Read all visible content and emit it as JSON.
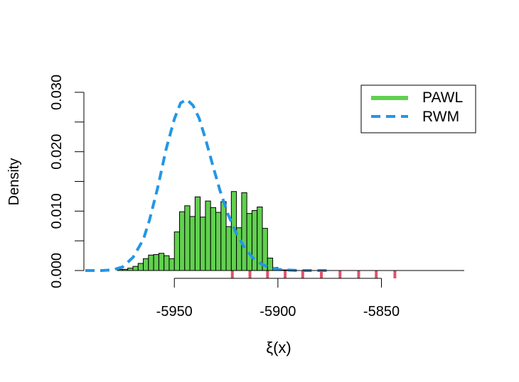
{
  "chart_data": {
    "type": "histogram",
    "title": "",
    "xlabel": "ξ(x)",
    "ylabel": "Density",
    "xlim": [
      -5993,
      -5810
    ],
    "ylim": [
      0,
      0.03
    ],
    "x_ticks": [
      -5950,
      -5900,
      -5850
    ],
    "x_tick_labels": [
      "-5950",
      "-5900",
      "-5850"
    ],
    "y_ticks": [
      0.0,
      0.005,
      0.01,
      0.015,
      0.02,
      0.025,
      0.03
    ],
    "y_tick_labels": [
      "0.000",
      "",
      "0.010",
      "",
      "0.020",
      "",
      "0.030"
    ],
    "grid": false,
    "legend": {
      "position": "top-right",
      "entries": [
        {
          "label": "PAWL",
          "color": "#61d04f",
          "style": "solid"
        },
        {
          "label": "RWM",
          "color": "#2297e6",
          "style": "dashed"
        }
      ]
    },
    "histogram": {
      "name": "PAWL",
      "fill": "#61d04f",
      "bin_width": 2.5,
      "bins": [
        {
          "x0": -5977.5,
          "density": 0.0002
        },
        {
          "x0": -5975.0,
          "density": 0.0002
        },
        {
          "x0": -5972.5,
          "density": 0.0004
        },
        {
          "x0": -5970.0,
          "density": 0.0007
        },
        {
          "x0": -5967.5,
          "density": 0.0012
        },
        {
          "x0": -5965.0,
          "density": 0.002
        },
        {
          "x0": -5962.5,
          "density": 0.0026
        },
        {
          "x0": -5960.0,
          "density": 0.0027
        },
        {
          "x0": -5957.5,
          "density": 0.0029
        },
        {
          "x0": -5955.0,
          "density": 0.0025
        },
        {
          "x0": -5952.5,
          "density": 0.002
        },
        {
          "x0": -5950.0,
          "density": 0.0065
        },
        {
          "x0": -5947.5,
          "density": 0.0099
        },
        {
          "x0": -5945.0,
          "density": 0.0109
        },
        {
          "x0": -5942.5,
          "density": 0.0091
        },
        {
          "x0": -5940.0,
          "density": 0.0124
        },
        {
          "x0": -5937.5,
          "density": 0.009
        },
        {
          "x0": -5935.0,
          "density": 0.0117
        },
        {
          "x0": -5932.5,
          "density": 0.0106
        },
        {
          "x0": -5930.0,
          "density": 0.0098
        },
        {
          "x0": -5927.5,
          "density": 0.0116
        },
        {
          "x0": -5925.0,
          "density": 0.0074
        },
        {
          "x0": -5922.5,
          "density": 0.0133
        },
        {
          "x0": -5920.0,
          "density": 0.0072
        },
        {
          "x0": -5917.5,
          "density": 0.0131
        },
        {
          "x0": -5915.0,
          "density": 0.0096
        },
        {
          "x0": -5912.5,
          "density": 0.0101
        },
        {
          "x0": -5910.0,
          "density": 0.0107
        },
        {
          "x0": -5907.5,
          "density": 0.0071
        },
        {
          "x0": -5905.0,
          "density": 0.0021
        },
        {
          "x0": -5902.5,
          "density": 0.0005
        },
        {
          "x0": -5900.0,
          "density": 0.0001
        },
        {
          "x0": -5897.5,
          "density": 0.0001
        }
      ]
    },
    "series": [
      {
        "name": "RWM",
        "kind": "density_line",
        "color": "#2297e6",
        "dash": true,
        "x": [
          -5993,
          -5985,
          -5980,
          -5975,
          -5970,
          -5965,
          -5962,
          -5958,
          -5954,
          -5950,
          -5947,
          -5944,
          -5941,
          -5938,
          -5935,
          -5932,
          -5928,
          -5924,
          -5920,
          -5916,
          -5912,
          -5908,
          -5904,
          -5900,
          -5896,
          -5890,
          -5885,
          -5880,
          -5876
        ],
        "y": [
          0,
          0,
          0.0001,
          0.0006,
          0.0022,
          0.0052,
          0.0085,
          0.014,
          0.0204,
          0.0255,
          0.0282,
          0.0288,
          0.0278,
          0.0256,
          0.0222,
          0.0184,
          0.0135,
          0.0094,
          0.0062,
          0.0038,
          0.0021,
          0.0011,
          0.0005,
          0.0002,
          0.0001,
          0,
          0,
          0,
          0
        ]
      }
    ],
    "rug": {
      "color": "#df536b",
      "x": [
        -5922.0,
        -5913.5,
        -5905.0,
        -5896.5,
        -5888.0,
        -5879.0,
        -5870.0,
        -5861.0,
        -5852.5,
        -5843.5
      ]
    }
  }
}
